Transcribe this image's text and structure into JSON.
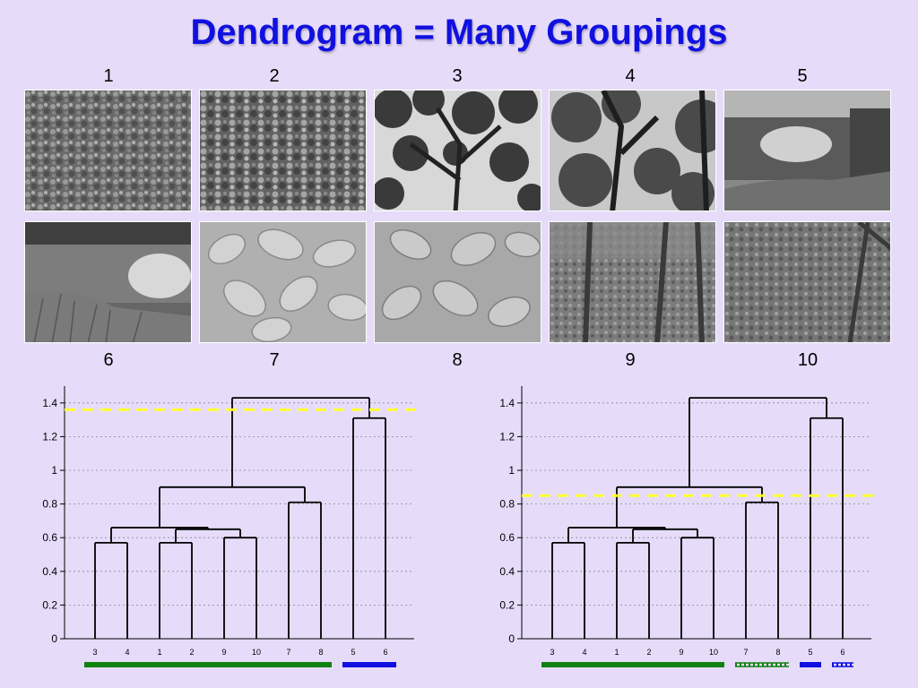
{
  "title": "Dendrogram = Many Groupings",
  "images": [
    {
      "label": "1",
      "icon": "foliage-photo-icon"
    },
    {
      "label": "2",
      "icon": "foliage-photo-icon"
    },
    {
      "label": "3",
      "icon": "tree-canopy-photo-icon"
    },
    {
      "label": "4",
      "icon": "forest-photo-icon"
    },
    {
      "label": "5",
      "icon": "lake-photo-icon"
    },
    {
      "label": "6",
      "icon": "lake-photo-icon"
    },
    {
      "label": "7",
      "icon": "leaves-photo-icon"
    },
    {
      "label": "8",
      "icon": "leaves-photo-icon"
    },
    {
      "label": "9",
      "icon": "forest-floor-photo-icon"
    },
    {
      "label": "10",
      "icon": "forest-floor-photo-icon"
    }
  ],
  "dendrograms": [
    {
      "yticks": [
        "0",
        "0.2",
        "0.4",
        "0.6",
        "0.8",
        "1",
        "1.2",
        "1.4"
      ],
      "leaf_order": [
        "3",
        "4",
        "1",
        "2",
        "9",
        "10",
        "7",
        "8",
        "5",
        "6"
      ],
      "cut_height": 1.36,
      "groups": [
        {
          "leaves": [
            "3",
            "4",
            "1",
            "2",
            "9",
            "10",
            "7",
            "8"
          ],
          "color": "#108010",
          "style": "solid"
        },
        {
          "leaves": [
            "5",
            "6"
          ],
          "color": "#1010e0",
          "style": "solid"
        }
      ]
    },
    {
      "yticks": [
        "0",
        "0.2",
        "0.4",
        "0.6",
        "0.8",
        "1",
        "1.2",
        "1.4"
      ],
      "leaf_order": [
        "3",
        "4",
        "1",
        "2",
        "9",
        "10",
        "7",
        "8",
        "5",
        "6"
      ],
      "cut_height": 0.85,
      "groups": [
        {
          "leaves": [
            "3",
            "4",
            "1",
            "2",
            "9",
            "10"
          ],
          "color": "#108010",
          "style": "solid"
        },
        {
          "leaves": [
            "7",
            "8"
          ],
          "color": "#108010",
          "style": "hatched"
        },
        {
          "leaves": [
            "5"
          ],
          "color": "#1010e0",
          "style": "solid"
        },
        {
          "leaves": [
            "6"
          ],
          "color": "#1010e0",
          "style": "hatched"
        }
      ]
    }
  ],
  "merges": [
    {
      "a": "3",
      "b": "4",
      "height": 0.57
    },
    {
      "a": "1",
      "b": "2",
      "height": 0.57
    },
    {
      "a": "9",
      "b": "10",
      "height": 0.6
    },
    {
      "a": "(1,2)",
      "b": "(9,10)",
      "height": 0.65
    },
    {
      "a": "(3,4)",
      "b": "(1,2,9,10)",
      "height": 0.66
    },
    {
      "a": "7",
      "b": "8",
      "height": 0.81
    },
    {
      "a": "(3,4,1,2,9,10)",
      "b": "(7,8)",
      "height": 0.9
    },
    {
      "a": "5",
      "b": "6",
      "height": 1.31
    },
    {
      "a": "(3,4,1,2,9,10,7,8)",
      "b": "(5,6)",
      "height": 1.43
    }
  ],
  "colors": {
    "title": "#1010e0",
    "background": "#e6dcfa",
    "cut_line": "#ffff33",
    "tree_line": "#000000",
    "grid": "#888888"
  }
}
